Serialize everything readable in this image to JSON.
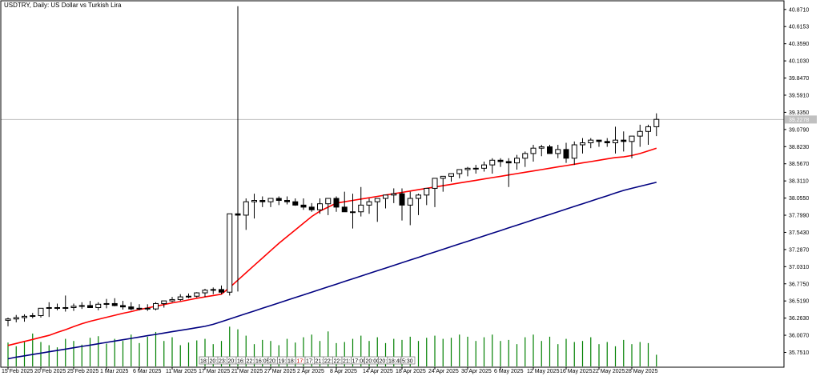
{
  "chart_data": {
    "type": "candlestick",
    "title": "USDTRY, Daily:  US Dollar vs Turkish Lira",
    "current_price": 39.2278,
    "ylim": [
      35.53,
      41.0
    ],
    "y_ticks": [
      40.871,
      40.6153,
      40.359,
      40.103,
      39.847,
      39.591,
      39.335,
      39.079,
      38.823,
      38.567,
      38.311,
      38.055,
      37.799,
      37.543,
      37.287,
      37.031,
      36.775,
      36.519,
      36.263,
      36.007,
      35.751
    ],
    "y_tick_labels": [
      "40.8710",
      "40.6153",
      "40.3590",
      "40.1030",
      "39.8470",
      "39.5910",
      "39.3350",
      "39.0790",
      "38.8230",
      "38.5670",
      "38.3110",
      "38.0550",
      "37.7990",
      "37.5430",
      "37.2870",
      "37.0310",
      "36.7750",
      "36.5190",
      "36.2630",
      "36.0070",
      "35.7510"
    ],
    "x_labels": [
      {
        "i": 0,
        "label": "15 Feb 2025"
      },
      {
        "i": 4,
        "label": "20 Feb 2025"
      },
      {
        "i": 8,
        "label": "25 Feb 2025"
      },
      {
        "i": 12,
        "label": "1 Mar 2025"
      },
      {
        "i": 16,
        "label": "6 Mar 2025"
      },
      {
        "i": 20,
        "label": "11 Mar 2025"
      },
      {
        "i": 24,
        "label": "17 Mar 2025"
      },
      {
        "i": 28,
        "label": "21 Mar 2025"
      },
      {
        "i": 32,
        "label": "27 Mar 2025"
      },
      {
        "i": 36,
        "label": "2 Apr 2025"
      },
      {
        "i": 40,
        "label": "8 Apr 2025"
      },
      {
        "i": 44,
        "label": "14 Apr 2025"
      },
      {
        "i": 48,
        "label": "18 Apr 2025"
      },
      {
        "i": 52,
        "label": "24 Apr 2025"
      },
      {
        "i": 56,
        "label": "30 Apr 2025"
      },
      {
        "i": 60,
        "label": "6 May 2025"
      },
      {
        "i": 64,
        "label": "12 May 2025"
      },
      {
        "i": 68,
        "label": "16 May 2025"
      },
      {
        "i": 72,
        "label": "22 May 2025"
      },
      {
        "i": 76,
        "label": "28 May 2025"
      }
    ],
    "candles": {
      "open": [
        36.23,
        36.25,
        36.27,
        36.29,
        36.3,
        36.41,
        36.42,
        36.42,
        36.42,
        36.44,
        36.45,
        36.42,
        36.47,
        36.48,
        36.45,
        36.43,
        36.4,
        36.41,
        36.4,
        36.48,
        36.52,
        36.54,
        36.58,
        36.59,
        36.64,
        36.68,
        36.69,
        36.65,
        37.82,
        37.8,
        38.0,
        38.02,
        38.0,
        38.05,
        38.02,
        38.0,
        37.95,
        37.92,
        37.88,
        37.97,
        38.05,
        37.92,
        37.85,
        37.85,
        37.95,
        38.0,
        38.05,
        38.1,
        38.12,
        37.95,
        38.05,
        38.1,
        38.2,
        38.35,
        38.38,
        38.42,
        38.48,
        38.5,
        38.5,
        38.55,
        38.62,
        38.6,
        38.58,
        38.65,
        38.72,
        38.8,
        38.82,
        38.72,
        38.78,
        38.65,
        38.85,
        38.88,
        38.92,
        38.9,
        38.88,
        38.92,
        38.9,
        38.98,
        39.05,
        39.12
      ],
      "high": [
        36.27,
        36.31,
        36.32,
        36.34,
        36.36,
        36.5,
        36.48,
        36.6,
        36.48,
        36.5,
        36.52,
        36.5,
        36.55,
        36.56,
        36.52,
        36.5,
        36.47,
        36.47,
        36.5,
        36.52,
        36.58,
        36.62,
        36.63,
        36.65,
        36.7,
        36.72,
        36.75,
        36.68,
        40.92,
        38.05,
        38.12,
        38.08,
        38.05,
        38.08,
        38.08,
        38.05,
        38.05,
        37.98,
        38.05,
        38.05,
        38.08,
        38.15,
        38.12,
        38.22,
        38.05,
        38.05,
        38.1,
        38.2,
        38.2,
        38.15,
        38.12,
        38.15,
        38.25,
        38.35,
        38.42,
        38.48,
        38.52,
        38.55,
        38.6,
        38.65,
        38.65,
        38.65,
        38.7,
        38.75,
        38.85,
        38.85,
        38.85,
        38.85,
        38.88,
        38.9,
        38.95,
        38.95,
        38.92,
        38.95,
        39.12,
        39.05,
        38.98,
        39.15,
        39.15,
        39.32
      ],
      "low": [
        36.14,
        36.2,
        36.21,
        36.26,
        36.27,
        36.28,
        36.38,
        36.36,
        36.37,
        36.4,
        36.43,
        36.38,
        36.41,
        36.44,
        36.39,
        36.38,
        36.38,
        36.37,
        36.38,
        36.42,
        36.5,
        36.52,
        36.56,
        36.57,
        36.58,
        36.62,
        36.62,
        36.6,
        36.66,
        37.58,
        37.75,
        37.92,
        37.92,
        37.95,
        37.96,
        37.94,
        37.88,
        37.85,
        37.82,
        37.8,
        37.85,
        37.88,
        37.6,
        37.78,
        37.82,
        37.7,
        37.9,
        37.98,
        37.72,
        37.65,
        37.8,
        37.95,
        37.92,
        38.15,
        38.3,
        38.35,
        38.38,
        38.42,
        38.45,
        38.42,
        38.52,
        38.22,
        38.48,
        38.52,
        38.6,
        38.68,
        38.72,
        38.65,
        38.58,
        38.55,
        38.72,
        38.8,
        38.82,
        38.82,
        38.72,
        38.75,
        38.65,
        38.82,
        38.85,
        38.98
      ],
      "close": [
        36.25,
        36.27,
        36.29,
        36.3,
        36.41,
        36.42,
        36.42,
        36.42,
        36.44,
        36.45,
        36.42,
        36.47,
        36.48,
        36.45,
        36.43,
        36.4,
        36.41,
        36.4,
        36.48,
        36.52,
        36.54,
        36.58,
        36.59,
        36.64,
        36.68,
        36.69,
        36.65,
        37.82,
        37.8,
        38.0,
        38.02,
        38.0,
        38.05,
        38.02,
        38.0,
        37.95,
        37.92,
        37.88,
        37.97,
        38.05,
        37.92,
        37.85,
        37.85,
        37.95,
        38.0,
        38.05,
        38.1,
        38.12,
        37.95,
        38.05,
        38.1,
        38.2,
        38.35,
        38.38,
        38.42,
        38.48,
        38.5,
        38.5,
        38.55,
        38.62,
        38.6,
        38.58,
        38.65,
        38.72,
        38.8,
        38.82,
        38.72,
        38.78,
        38.65,
        38.85,
        38.88,
        38.92,
        38.9,
        38.88,
        38.92,
        38.9,
        38.98,
        39.05,
        39.12,
        39.23
      ]
    },
    "series": [
      {
        "type": "ma",
        "color": "#ff0000",
        "values": [
          35.855,
          35.885,
          35.915,
          35.945,
          35.975,
          36.005,
          36.05,
          36.09,
          36.135,
          36.18,
          36.215,
          36.245,
          36.275,
          36.305,
          36.335,
          36.36,
          36.39,
          36.415,
          36.44,
          36.465,
          36.49,
          36.51,
          36.535,
          36.56,
          36.58,
          36.6,
          36.62,
          36.72,
          36.83,
          36.94,
          37.05,
          37.16,
          37.27,
          37.38,
          37.48,
          37.58,
          37.68,
          37.78,
          37.86,
          37.92,
          37.98,
          38.0,
          38.02,
          38.04,
          38.06,
          38.08,
          38.1,
          38.12,
          38.14,
          38.16,
          38.18,
          38.2,
          38.22,
          38.24,
          38.26,
          38.28,
          38.3,
          38.32,
          38.34,
          38.36,
          38.38,
          38.4,
          38.42,
          38.44,
          38.46,
          38.48,
          38.5,
          38.52,
          38.54,
          38.56,
          38.58,
          38.6,
          38.62,
          38.64,
          38.66,
          38.67,
          38.69,
          38.72,
          38.76,
          38.8
        ]
      },
      {
        "type": "ma",
        "color": "#000080",
        "values": [
          35.655,
          35.68,
          35.7,
          35.72,
          35.74,
          35.76,
          35.78,
          35.8,
          35.82,
          35.84,
          35.86,
          35.88,
          35.9,
          35.92,
          35.94,
          35.96,
          35.98,
          36.0,
          36.02,
          36.04,
          36.06,
          36.08,
          36.1,
          36.12,
          36.14,
          36.17,
          36.21,
          36.25,
          36.29,
          36.33,
          36.37,
          36.41,
          36.45,
          36.49,
          36.53,
          36.57,
          36.61,
          36.65,
          36.69,
          36.73,
          36.77,
          36.81,
          36.85,
          36.89,
          36.93,
          36.97,
          37.01,
          37.05,
          37.09,
          37.13,
          37.17,
          37.21,
          37.25,
          37.29,
          37.33,
          37.37,
          37.41,
          37.45,
          37.49,
          37.53,
          37.57,
          37.61,
          37.65,
          37.69,
          37.73,
          37.77,
          37.81,
          37.85,
          37.89,
          37.93,
          37.97,
          38.01,
          38.05,
          38.09,
          38.13,
          38.17,
          38.2,
          38.23,
          38.26,
          38.29
        ]
      }
    ],
    "volume": [
      45,
      38,
      48,
      62,
      46,
      40,
      36,
      52,
      48,
      41,
      54,
      57,
      43,
      52,
      48,
      60,
      44,
      56,
      65,
      48,
      55,
      40,
      45,
      49,
      52,
      42,
      48,
      75,
      70,
      58,
      42,
      50,
      48,
      40,
      52,
      45,
      55,
      60,
      48,
      66,
      44,
      46,
      52,
      58,
      48,
      55,
      44,
      52,
      50,
      56,
      48,
      54,
      58,
      52,
      54,
      60,
      56,
      48,
      55,
      60,
      48,
      50,
      42,
      55,
      60,
      48,
      56,
      42,
      52,
      46,
      48,
      55,
      42,
      46,
      38,
      50,
      42,
      46,
      44,
      22
    ],
    "volume_ylim": [
      0,
      80
    ],
    "overlay_boxes": [
      {
        "text": "18:",
        "red": false
      },
      {
        "text": "20:",
        "red": false
      },
      {
        "text": "23:",
        "red": false
      },
      {
        "text": "20:",
        "red": false
      },
      {
        "text": "16:",
        "red": false
      },
      {
        "text": "22:",
        "red": false
      },
      {
        "text": "16:05",
        "red": false
      },
      {
        "text": "20:",
        "red": false
      },
      {
        "text": "19:",
        "red": false
      },
      {
        "text": "18:",
        "red": false
      },
      {
        "text": "17:",
        "red": true
      },
      {
        "text": "17:",
        "red": false
      },
      {
        "text": "21:",
        "red": false
      },
      {
        "text": "22:",
        "red": false
      },
      {
        "text": "22:",
        "red": false
      },
      {
        "text": "21:",
        "red": false
      },
      {
        "text": "17:00",
        "red": false
      },
      {
        "text": "20:00",
        "red": false
      },
      {
        "text": "20:",
        "red": false
      },
      {
        "text": "18:40",
        "red": false
      },
      {
        "text": "5:30",
        "red": false
      }
    ]
  }
}
